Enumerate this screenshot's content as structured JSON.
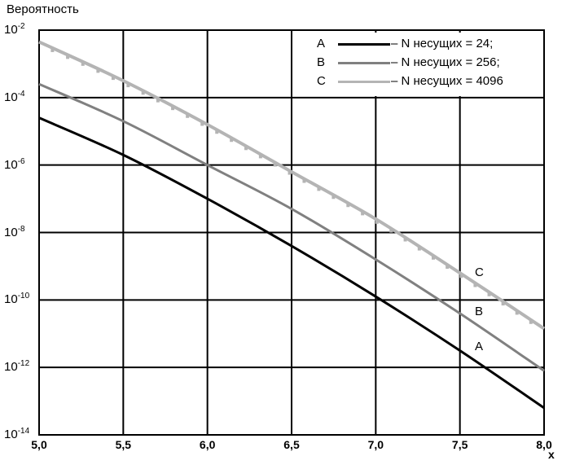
{
  "chart_data": {
    "type": "line",
    "ylabel": "Вероятность",
    "xlabel": "x",
    "x_ticks": [
      "5,0",
      "5,5",
      "6,0",
      "6,5",
      "7,0",
      "7,5",
      "8,0"
    ],
    "y_ticks": [
      {
        "base": "10",
        "exp": "-2"
      },
      {
        "base": "10",
        "exp": "-4"
      },
      {
        "base": "10",
        "exp": "-6"
      },
      {
        "base": "10",
        "exp": "-8"
      },
      {
        "base": "10",
        "exp": "-10"
      },
      {
        "base": "10",
        "exp": "-12"
      },
      {
        "base": "10",
        "exp": "-14"
      }
    ],
    "xlim": [
      5.0,
      8.0
    ],
    "ylim_log10": [
      -14,
      -2
    ],
    "y_scale": "log",
    "grid": true,
    "legend_position": "top-right",
    "series": [
      {
        "name": "A",
        "legend_text": "– N несущих = 24;",
        "curve_label": "A",
        "color": "#000000",
        "x": [
          5.0,
          5.5,
          6.0,
          6.5,
          7.0,
          7.5,
          8.0
        ],
        "log10_y": [
          -4.6,
          -5.7,
          -7.0,
          -8.4,
          -9.9,
          -11.5,
          -13.2
        ]
      },
      {
        "name": "B",
        "legend_text": "– N несущих = 256;",
        "curve_label": "B",
        "color": "#808080",
        "x": [
          5.0,
          5.5,
          6.0,
          6.5,
          7.0,
          7.5,
          8.0
        ],
        "log10_y": [
          -3.6,
          -4.7,
          -6.0,
          -7.3,
          -8.8,
          -10.4,
          -12.1
        ]
      },
      {
        "name": "C",
        "legend_text": "– N несущих = 4096",
        "curve_label": "C",
        "color": "#b4b4b4",
        "x": [
          5.0,
          5.5,
          6.0,
          6.5,
          7.0,
          7.5,
          8.0
        ],
        "log10_y": [
          -2.35,
          -3.5,
          -4.8,
          -6.2,
          -7.6,
          -9.2,
          -10.85
        ]
      }
    ]
  }
}
